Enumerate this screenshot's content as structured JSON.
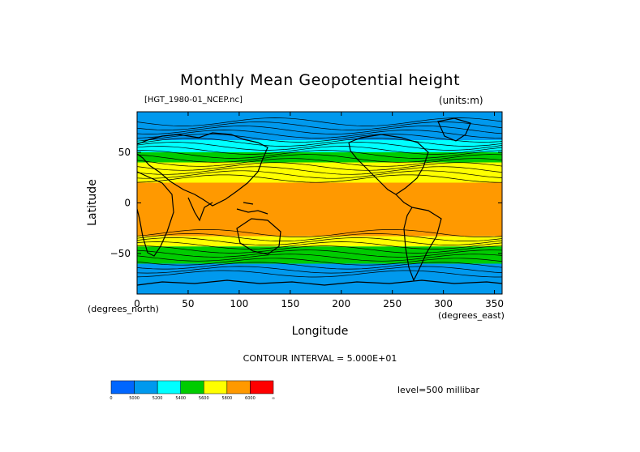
{
  "chart_data": {
    "type": "heatmap",
    "title": "Monthly Mean Geopotential height",
    "source_label": "[HGT_1980-01_NCEP.nc]",
    "units": "(units:m)",
    "xlabel": "Longitude",
    "ylabel": "Latitude",
    "x_unit": "(degrees_east)",
    "y_unit": "(degrees_north)",
    "xlim": [
      0,
      357.5
    ],
    "ylim": [
      -90,
      90
    ],
    "x_ticks": [
      0,
      50,
      100,
      150,
      200,
      250,
      300,
      350
    ],
    "y_ticks": [
      -50,
      0,
      50
    ],
    "y_tick_labels": [
      "−50",
      "0",
      "50"
    ],
    "contour_interval": "CONTOUR INTERVAL = 5.000E+01",
    "level": "level=500 millibar",
    "grid": false,
    "colorbar": {
      "placement": "bottom-left",
      "levels": [
        0,
        5000,
        5200,
        5400,
        5600,
        5800,
        6000
      ],
      "tick_labels": [
        "0",
        "5000",
        "5200",
        "5400",
        "5600",
        "5800",
        "6000",
        "∞"
      ],
      "colors": [
        "#0066ff",
        "#0099ee",
        "#00ffff",
        "#00cc00",
        "#ffff00",
        "#ff9900",
        "#ff0000"
      ]
    },
    "bands": [
      {
        "lat_from": 90,
        "lat_to": 62,
        "value": 5200,
        "color": "#0099ee"
      },
      {
        "lat_from": 62,
        "lat_to": 50,
        "value": 5300,
        "color": "#00ffff"
      },
      {
        "lat_from": 50,
        "lat_to": 40,
        "value": 5500,
        "color": "#00cc00"
      },
      {
        "lat_from": 40,
        "lat_to": 20,
        "value": 5700,
        "color": "#ffff00"
      },
      {
        "lat_from": 20,
        "lat_to": -33,
        "value": 5850,
        "color": "#ff9900"
      },
      {
        "lat_from": -33,
        "lat_to": -43,
        "value": 5700,
        "color": "#ffff00"
      },
      {
        "lat_from": -43,
        "lat_to": -60,
        "value": 5500,
        "color": "#00cc00"
      },
      {
        "lat_from": -60,
        "lat_to": -90,
        "value": 5200,
        "color": "#0099ee"
      }
    ]
  }
}
